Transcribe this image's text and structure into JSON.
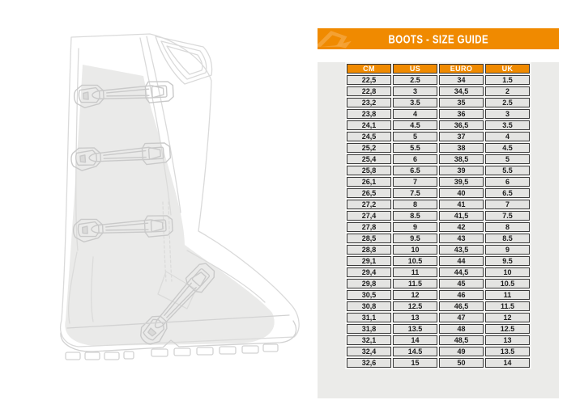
{
  "panel": {
    "title": "BOOTS - SIZE GUIDE",
    "logo_icon": "brand-arrow-logo",
    "colors": {
      "accent": "#F08A00",
      "logo": "#F5A43C",
      "panel_bg": "#EBEBE9",
      "cell_bg": "#E4E4E2",
      "cell_border": "#3A3A3A",
      "header_text": "#FFFFFF",
      "cell_text": "#1D1D1D"
    }
  },
  "table": {
    "columns": [
      "CM",
      "US",
      "EURO",
      "UK"
    ],
    "rows": [
      [
        "22,5",
        "2.5",
        "34",
        "1.5"
      ],
      [
        "22,8",
        "3",
        "34,5",
        "2"
      ],
      [
        "23,2",
        "3.5",
        "35",
        "2.5"
      ],
      [
        "23,8",
        "4",
        "36",
        "3"
      ],
      [
        "24,1",
        "4.5",
        "36,5",
        "3.5"
      ],
      [
        "24,5",
        "5",
        "37",
        "4"
      ],
      [
        "25,2",
        "5.5",
        "38",
        "4.5"
      ],
      [
        "25,4",
        "6",
        "38,5",
        "5"
      ],
      [
        "25,8",
        "6.5",
        "39",
        "5.5"
      ],
      [
        "26,1",
        "7",
        "39,5",
        "6"
      ],
      [
        "26,5",
        "7.5",
        "40",
        "6.5"
      ],
      [
        "27,2",
        "8",
        "41",
        "7"
      ],
      [
        "27,4",
        "8.5",
        "41,5",
        "7.5"
      ],
      [
        "27,8",
        "9",
        "42",
        "8"
      ],
      [
        "28,5",
        "9.5",
        "43",
        "8.5"
      ],
      [
        "28,8",
        "10",
        "43,5",
        "9"
      ],
      [
        "29,1",
        "10.5",
        "44",
        "9.5"
      ],
      [
        "29,4",
        "11",
        "44,5",
        "10"
      ],
      [
        "29,8",
        "11.5",
        "45",
        "10.5"
      ],
      [
        "30,5",
        "12",
        "46",
        "11"
      ],
      [
        "30,8",
        "12.5",
        "46,5",
        "11.5"
      ],
      [
        "31,1",
        "13",
        "47",
        "12"
      ],
      [
        "31,8",
        "13.5",
        "48",
        "12.5"
      ],
      [
        "32,1",
        "14",
        "48,5",
        "13"
      ],
      [
        "32,4",
        "14.5",
        "49",
        "13.5"
      ],
      [
        "32,6",
        "15",
        "50",
        "14"
      ]
    ]
  },
  "illustration": {
    "subject": "motocross-boot-line-drawing"
  }
}
